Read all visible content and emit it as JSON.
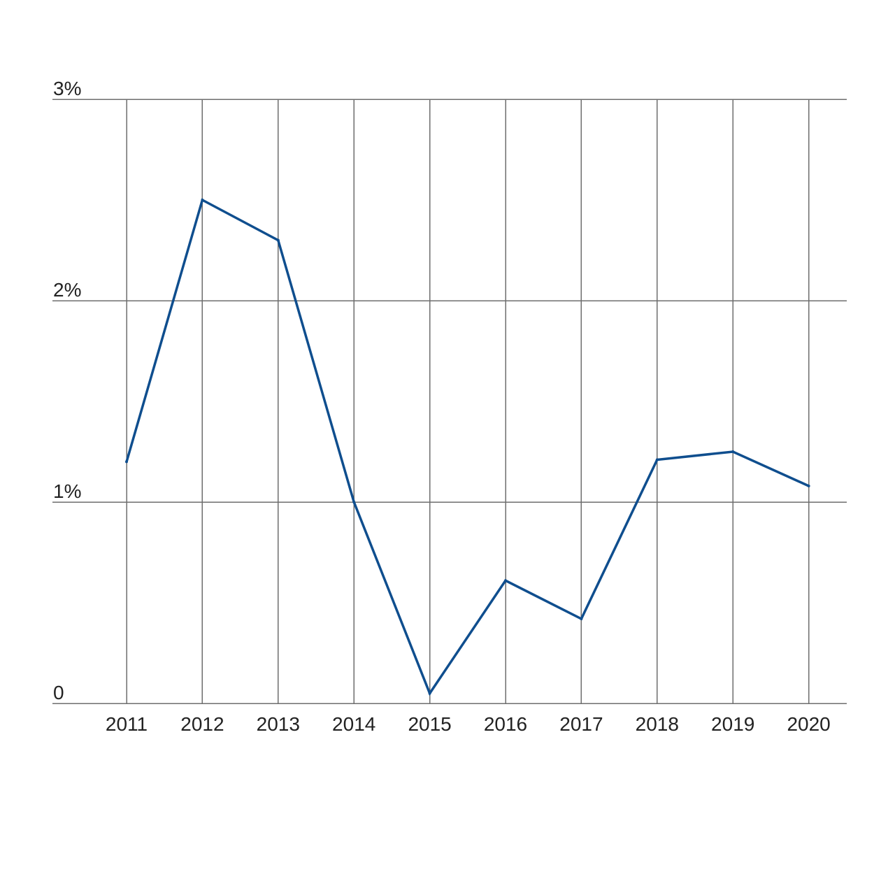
{
  "chart_data": {
    "type": "line",
    "title": "",
    "xlabel": "",
    "ylabel": "",
    "categories": [
      "2011",
      "2012",
      "2013",
      "2014",
      "2015",
      "2016",
      "2017",
      "2018",
      "2019",
      "2020"
    ],
    "series": [
      {
        "values": [
          1.2,
          2.5,
          2.3,
          1.0,
          0.05,
          0.61,
          0.42,
          1.21,
          1.25,
          1.08
        ],
        "color": "#0f4e8e"
      }
    ],
    "ylim": [
      0,
      3
    ],
    "yticks": [
      {
        "value": 0,
        "label": "0"
      },
      {
        "value": 1,
        "label": "1%"
      },
      {
        "value": 2,
        "label": "2%"
      },
      {
        "value": 3,
        "label": "3%"
      }
    ],
    "grid": {
      "horizontal": true,
      "vertical": true
    },
    "legend": "none"
  }
}
